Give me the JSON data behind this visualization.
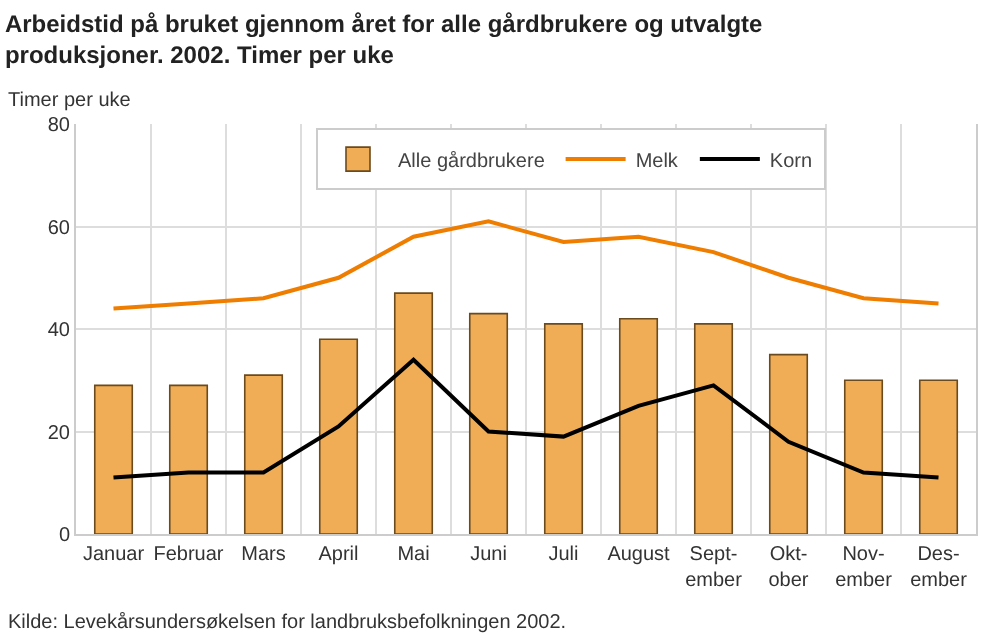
{
  "chart_data": {
    "type": "bar",
    "title": "Arbeidstid på bruket gjennom året for alle gårdbrukere og utvalgte produksjoner. 2002. Timer per uke",
    "ylabel": "Timer per uke",
    "categories": [
      "Januar",
      "Februar",
      "Mars",
      "April",
      "Mai",
      "Juni",
      "Juli",
      "August",
      "Sept-\nember",
      "Okt-\nober",
      "Nov-\nember",
      "Des-\nember"
    ],
    "series": [
      {
        "name": "Alle gårdbrukere",
        "color": "#f0ad55",
        "values": [
          29,
          29,
          31,
          38,
          47,
          43,
          41,
          42,
          41,
          35,
          30,
          30
        ]
      },
      {
        "name": "Melk",
        "type": "line",
        "color": "#ef7d00",
        "values": [
          44,
          45,
          46,
          50,
          58,
          61,
          57,
          58,
          55,
          50,
          46,
          45
        ]
      },
      {
        "name": "Korn",
        "type": "line",
        "color": "#000000",
        "values": [
          11,
          12,
          12,
          21,
          34,
          20,
          19,
          25,
          29,
          18,
          12,
          11
        ]
      }
    ],
    "ylim": [
      0,
      80
    ],
    "yticks": [
      0,
      20,
      40,
      60,
      80
    ],
    "grid": true,
    "legend": "top",
    "marker": "none",
    "line_style": "solid",
    "annotations": [
      "Kilde: Levekårsundersøkelsen for landbruksbefolkningen 2002."
    ]
  }
}
